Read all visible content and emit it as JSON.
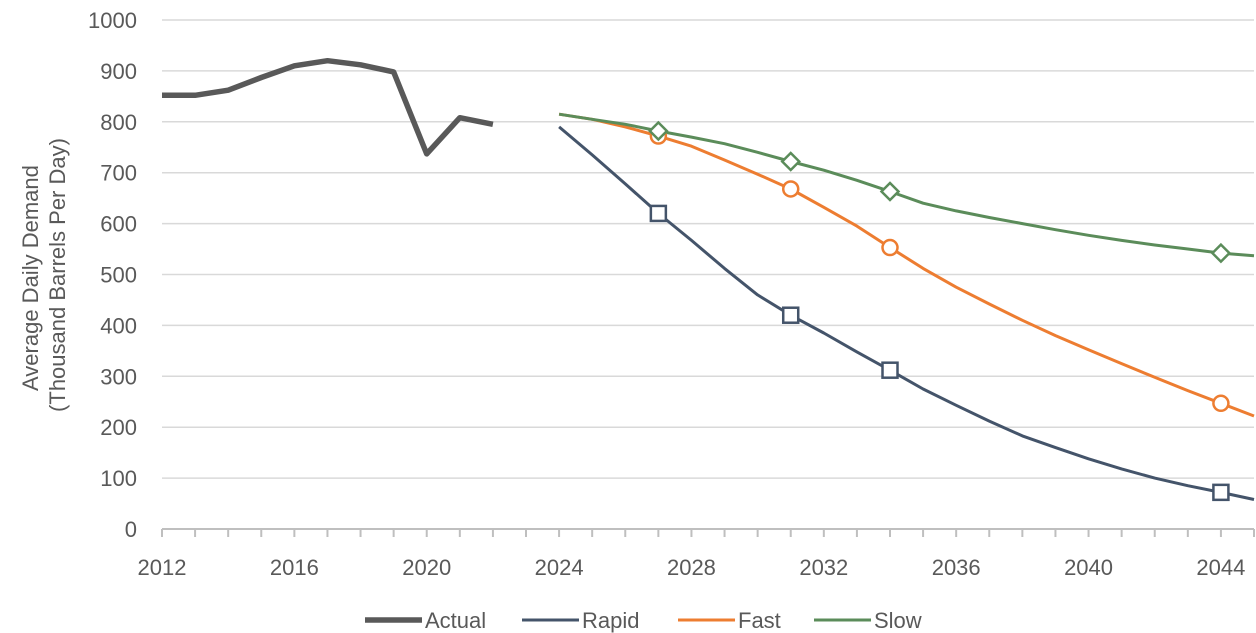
{
  "chart_data": {
    "type": "line",
    "ylabel_lines": [
      "Average Daily Demand",
      "(Thousand Barrels Per Day)"
    ],
    "xlim": [
      2012,
      2045
    ],
    "ylim": [
      0,
      1000
    ],
    "x_ticks": [
      "2012",
      "2016",
      "2020",
      "2024",
      "2028",
      "2032",
      "2036",
      "2040",
      "2044"
    ],
    "y_ticks": [
      "0",
      "100",
      "200",
      "300",
      "400",
      "500",
      "600",
      "700",
      "800",
      "900",
      "1000"
    ],
    "grid": "horizontal",
    "legend_position": "bottom",
    "series": [
      {
        "name": "Actual",
        "color": "#595959",
        "marker": "none",
        "points": [
          [
            2012,
            852
          ],
          [
            2013,
            852
          ],
          [
            2014,
            862
          ],
          [
            2015,
            887
          ],
          [
            2016,
            910
          ],
          [
            2017,
            920
          ],
          [
            2018,
            912
          ],
          [
            2019,
            898
          ],
          [
            2020,
            737
          ],
          [
            2021,
            808
          ],
          [
            2022,
            795
          ]
        ]
      },
      {
        "name": "Rapid",
        "color": "#44546A",
        "marker": "square",
        "points": [
          [
            2024,
            790
          ],
          [
            2025,
            735
          ],
          [
            2026,
            678
          ],
          [
            2027,
            620
          ],
          [
            2028,
            567
          ],
          [
            2029,
            512
          ],
          [
            2030,
            460
          ],
          [
            2031,
            420
          ],
          [
            2032,
            385
          ],
          [
            2033,
            348
          ],
          [
            2034,
            312
          ],
          [
            2035,
            275
          ],
          [
            2036,
            243
          ],
          [
            2037,
            212
          ],
          [
            2038,
            183
          ],
          [
            2039,
            160
          ],
          [
            2040,
            138
          ],
          [
            2041,
            118
          ],
          [
            2042,
            100
          ],
          [
            2043,
            85
          ],
          [
            2044,
            72
          ],
          [
            2045,
            58
          ]
        ],
        "marked_x": [
          2027,
          2031,
          2034,
          2044
        ]
      },
      {
        "name": "Fast",
        "color": "#ED7D31",
        "marker": "circle",
        "points": [
          [
            2024,
            815
          ],
          [
            2025,
            805
          ],
          [
            2026,
            790
          ],
          [
            2027,
            772
          ],
          [
            2028,
            752
          ],
          [
            2029,
            725
          ],
          [
            2030,
            697
          ],
          [
            2031,
            668
          ],
          [
            2032,
            632
          ],
          [
            2033,
            595
          ],
          [
            2034,
            553
          ],
          [
            2035,
            512
          ],
          [
            2036,
            475
          ],
          [
            2037,
            442
          ],
          [
            2038,
            410
          ],
          [
            2039,
            380
          ],
          [
            2040,
            352
          ],
          [
            2041,
            325
          ],
          [
            2042,
            298
          ],
          [
            2043,
            272
          ],
          [
            2044,
            247
          ],
          [
            2045,
            222
          ]
        ],
        "marked_x": [
          2027,
          2031,
          2034,
          2044
        ]
      },
      {
        "name": "Slow",
        "color": "#5B8C5A",
        "marker": "diamond",
        "points": [
          [
            2024,
            815
          ],
          [
            2025,
            805
          ],
          [
            2026,
            795
          ],
          [
            2027,
            782
          ],
          [
            2028,
            770
          ],
          [
            2029,
            757
          ],
          [
            2030,
            740
          ],
          [
            2031,
            722
          ],
          [
            2032,
            705
          ],
          [
            2033,
            685
          ],
          [
            2034,
            663
          ],
          [
            2035,
            640
          ],
          [
            2036,
            625
          ],
          [
            2037,
            612
          ],
          [
            2038,
            600
          ],
          [
            2039,
            588
          ],
          [
            2040,
            577
          ],
          [
            2041,
            567
          ],
          [
            2042,
            558
          ],
          [
            2043,
            550
          ],
          [
            2044,
            542
          ],
          [
            2045,
            537
          ]
        ],
        "marked_x": [
          2027,
          2031,
          2034,
          2044
        ]
      }
    ]
  }
}
